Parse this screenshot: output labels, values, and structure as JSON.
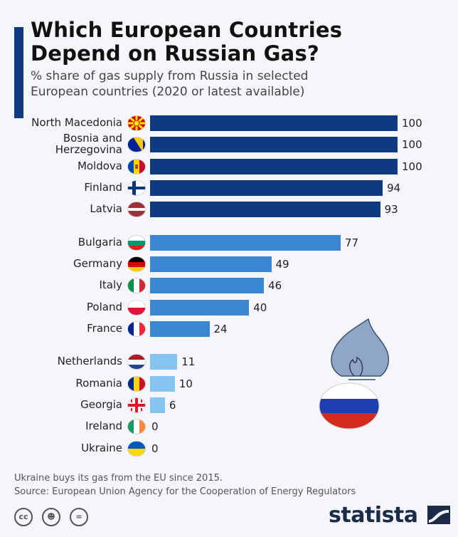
{
  "chart_data": {
    "type": "bar",
    "orientation": "horizontal",
    "title": "Which European Countries Depend on Russian Gas?",
    "subtitle": "% share of gas supply from Russia in selected European countries (2020 or latest available)",
    "xlim": [
      0,
      100
    ],
    "grid": false,
    "categories": [
      "North Macedonia",
      "Bosnia and Herzegovina",
      "Moldova",
      "Finland",
      "Latvia",
      "Bulgaria",
      "Germany",
      "Italy",
      "Poland",
      "France",
      "Netherlands",
      "Romania",
      "Georgia",
      "Ireland",
      "Ukraine"
    ],
    "values": [
      100,
      100,
      100,
      94,
      93,
      77,
      49,
      46,
      40,
      24,
      11,
      10,
      6,
      0,
      0
    ],
    "groups": [
      0,
      0,
      0,
      0,
      0,
      1,
      1,
      1,
      1,
      1,
      2,
      2,
      2,
      2,
      2
    ],
    "group_colors": [
      "#0e3a80",
      "#3a86d3",
      "#86c3f0"
    ],
    "flags": [
      "north-macedonia-flag-icon",
      "bosnia-flag-icon",
      "moldova-flag-icon",
      "finland-flag-icon",
      "latvia-flag-icon",
      "bulgaria-flag-icon",
      "germany-flag-icon",
      "italy-flag-icon",
      "poland-flag-icon",
      "france-flag-icon",
      "netherlands-flag-icon",
      "romania-flag-icon",
      "georgia-flag-icon",
      "ireland-flag-icon",
      "ukraine-flag-icon"
    ]
  },
  "title_line1": "Which European Countries",
  "title_line2": "Depend on Russian Gas?",
  "subtitle_line1": "% share of gas supply from Russia in selected",
  "subtitle_line2": "European countries (2020 or latest available)",
  "label_bosnia_line1": "Bosnia and",
  "label_bosnia_line2": "Herzegovina",
  "footnote": "Ukraine buys its gas from the EU since 2015.",
  "source": "Source: European Union Agency for the Cooperation of Energy Regulators",
  "license_icons": [
    "cc-icon",
    "attribution-icon",
    "no-derivatives-icon"
  ],
  "brand": "statista",
  "illustration": "gas-flame-russia-flag-icon"
}
